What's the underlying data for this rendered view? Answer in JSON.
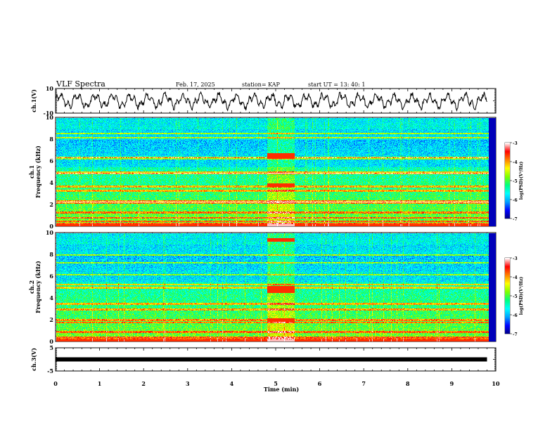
{
  "chart_data": {
    "type": "heatmap",
    "title": "VLF Spectra",
    "date": "Feb. 17, 2025",
    "station": "station= KAP",
    "start_ut": "start  UT  =  13: 40: 1",
    "x_axis": {
      "label": "Time  (min)",
      "range": [
        0,
        10
      ],
      "ticks": [
        "0",
        "1",
        "2",
        "3",
        "4",
        "5",
        "6",
        "7",
        "8",
        "9",
        "10"
      ]
    },
    "panels": [
      {
        "id": "ch1-wave",
        "type": "line",
        "ylabel": "ch.1(V)",
        "ylim": [
          -10,
          10
        ],
        "ticks": [
          "10",
          "-10"
        ],
        "data_extent_min": [
          0,
          9.8
        ]
      },
      {
        "id": "ch1-spec",
        "type": "heatmap",
        "ylabel_top": "ch.1",
        "ylabel": "Frequency  (kHz)",
        "ylim": [
          0,
          10
        ],
        "ticks": [
          "0",
          "2",
          "4",
          "6",
          "8",
          "10"
        ],
        "bright_interval_min": [
          4.8,
          5.4
        ],
        "colorbar": {
          "label": "log(PSD)(V²/Hz)",
          "range": [
            -7,
            -3
          ],
          "ticks": [
            "-3",
            "-4",
            "-5",
            "-6",
            "-7"
          ]
        }
      },
      {
        "id": "ch2-spec",
        "type": "heatmap",
        "ylabel_top": "ch.2",
        "ylabel": "Frequency  (kHz)",
        "ylim": [
          0,
          10
        ],
        "ticks": [
          "0",
          "2",
          "4",
          "6",
          "8",
          "10"
        ],
        "bright_interval_min": [
          4.8,
          5.4
        ],
        "colorbar": {
          "label": "log(PSD)(V²/Hz)",
          "range": [
            -7,
            -3
          ],
          "ticks": [
            "-3",
            "-4",
            "-5",
            "-6",
            "-7"
          ]
        }
      },
      {
        "id": "ch3-wave",
        "type": "line",
        "ylabel": "ch.3(V)",
        "ylim": [
          -5,
          5
        ],
        "ticks": [
          "5",
          "-5"
        ],
        "signal_value": 0,
        "data_extent_min": [
          0,
          9.8
        ]
      }
    ],
    "colormap": [
      "#00007f",
      "#0000ff",
      "#00a0ff",
      "#00ffff",
      "#00ff80",
      "#80ff00",
      "#ffff00",
      "#ff8000",
      "#ff0000",
      "#ffffff"
    ]
  }
}
